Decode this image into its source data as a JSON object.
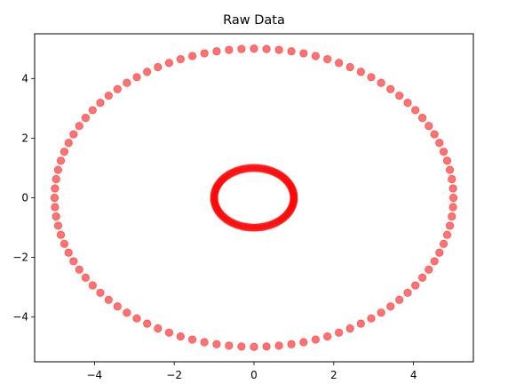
{
  "chart_data": {
    "type": "scatter",
    "title": "Raw Data",
    "xlabel": "",
    "ylabel": "",
    "xlim": [
      -5.5,
      5.5
    ],
    "ylim": [
      -5.5,
      5.5
    ],
    "xticks": [
      -4,
      -2,
      0,
      2,
      4
    ],
    "yticks": [
      -4,
      -2,
      0,
      2,
      4
    ],
    "xtick_labels": [
      "−4",
      "−2",
      "0",
      "2",
      "4"
    ],
    "ytick_labels": [
      "−4",
      "−2",
      "0",
      "2",
      "4"
    ],
    "grid": false,
    "marker_color": "#ff0000",
    "marker_alpha": 0.55,
    "series": [
      {
        "shape": "circle",
        "center": [
          0,
          0
        ],
        "radius": 5,
        "n_points": 100,
        "points": []
      },
      {
        "shape": "circle",
        "center": [
          0,
          0
        ],
        "radius": 1,
        "n_points": 100,
        "points": []
      }
    ]
  }
}
